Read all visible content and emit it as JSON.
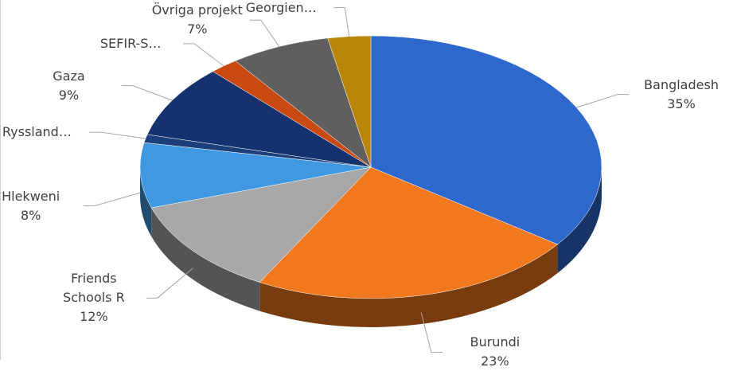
{
  "chart_data": {
    "type": "pie3d",
    "categories": [
      "Bangladesh",
      "Burundi",
      "Friends Schools R",
      "Hlekweni",
      "Ryssland…",
      "Gaza",
      "SEFIR-S…",
      "Övriga projekt",
      "Georgien…"
    ],
    "values": [
      35,
      23,
      12,
      8,
      1,
      9,
      2,
      7,
      3
    ],
    "value_labels": [
      "35%",
      "23%",
      "12%",
      "8%",
      null,
      "9%",
      null,
      "7%",
      null
    ],
    "colors": [
      "#2f68cc",
      "#f2781e",
      "#a8a8a8",
      "#3f98e0",
      "#1c3f7a",
      "#14326e",
      "#c84a10",
      "#5f5f5f",
      "#b8860b"
    ]
  }
}
